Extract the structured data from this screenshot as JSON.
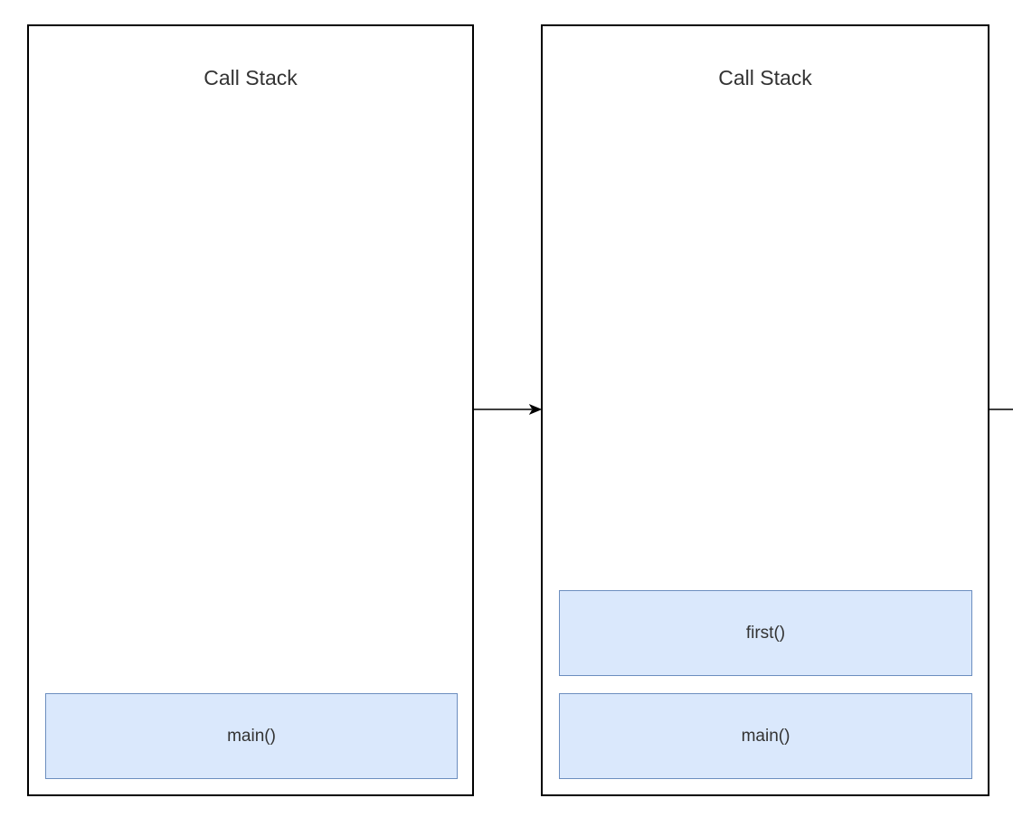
{
  "panels": [
    {
      "title": "Call Stack",
      "frames": [
        "main()"
      ]
    },
    {
      "title": "Call Stack",
      "frames": [
        "first()",
        "main()"
      ]
    }
  ],
  "colors": {
    "frame_fill": "#dae8fc",
    "frame_stroke": "#6c8ebf",
    "panel_stroke": "#000000",
    "text": "#333333"
  }
}
